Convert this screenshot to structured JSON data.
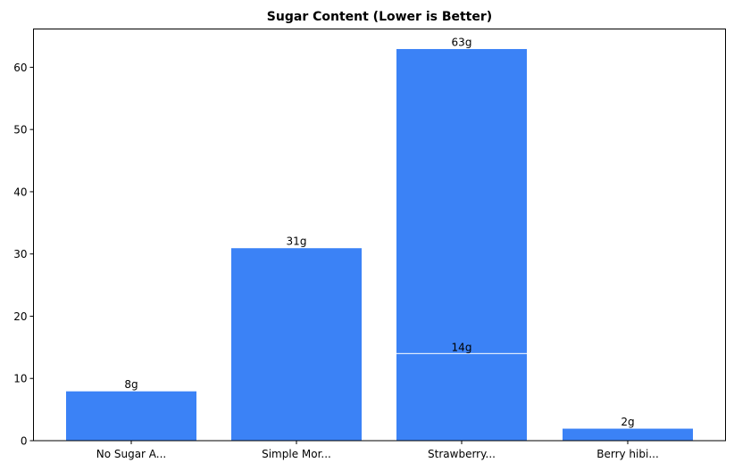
{
  "chart_data": {
    "type": "bar",
    "title": "Sugar Content (Lower is Better)",
    "xlabel": "",
    "ylabel": "",
    "ylim": [
      0,
      66.15
    ],
    "yticks": [
      0,
      10,
      20,
      30,
      40,
      50,
      60
    ],
    "grid": false,
    "legend": null,
    "categories": [
      "No Sugar A...",
      "Simple Mor...",
      "Strawberry...",
      "Berry hibi..."
    ],
    "bars": [
      {
        "category_index": 0,
        "value": 8,
        "label": "8g"
      },
      {
        "category_index": 1,
        "value": 31,
        "label": "31g"
      },
      {
        "category_index": 2,
        "value": 63,
        "label": "63g"
      },
      {
        "category_index": 2,
        "value": 14,
        "label": "14g"
      },
      {
        "category_index": 3,
        "value": 2,
        "label": "2g"
      }
    ],
    "values": [
      8,
      31,
      63,
      2
    ],
    "overlay_values": {
      "Strawberry...": 14
    },
    "colors": {
      "bar": "#3b82f6",
      "bar_edge": "#ffffff",
      "axis": "#000000",
      "background": "#ffffff"
    }
  }
}
